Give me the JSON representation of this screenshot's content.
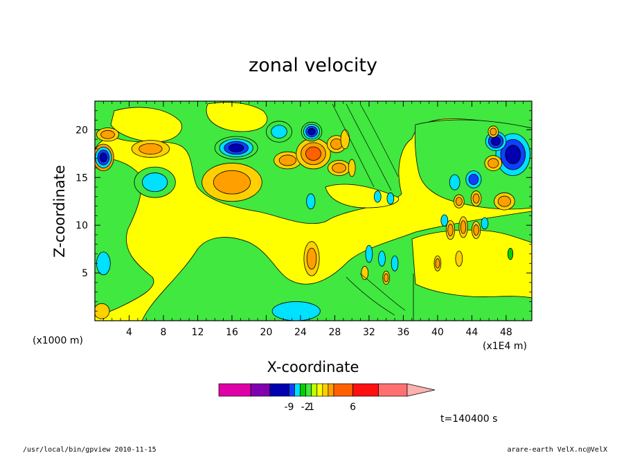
{
  "chart_data": {
    "type": "heatmap",
    "title": "zonal velocity",
    "xlabel": "X-coordinate",
    "ylabel": "Z-coordinate",
    "x_unit_left": "(x1000 m)",
    "x_unit_right": "(x1E4 m)",
    "xlim": [
      0,
      51
    ],
    "ylim": [
      0,
      23
    ],
    "xticks": [
      4,
      8,
      12,
      16,
      20,
      24,
      28,
      32,
      36,
      40,
      44,
      48
    ],
    "yticks": [
      5,
      10,
      15,
      20
    ],
    "colorbar": {
      "colors": [
        "#e000a8",
        "#8000b0",
        "#0000b0",
        "#1040ff",
        "#00e0ff",
        "#00d000",
        "#40e840",
        "#c0ff00",
        "#ffff00",
        "#ffd000",
        "#ffa000",
        "#ff6000",
        "#ff1010",
        "#ff7070"
      ],
      "tick_labels": [
        {
          "label": "-9",
          "index": 3
        },
        {
          "label": "-2",
          "index": 6
        },
        {
          "label": "1",
          "index": 7
        },
        {
          "label": "6",
          "index": 12
        }
      ],
      "extend": "max",
      "extend_color": "#ffb0b0"
    },
    "features": [
      {
        "cx": 1,
        "cy": 17.1,
        "rx": 1.2,
        "ry": 1.4,
        "levels": [
          "#ffa000",
          "#00e0ff",
          "#1040ff",
          "#0000b0"
        ]
      },
      {
        "cx": 1.5,
        "cy": 19.5,
        "rx": 1.3,
        "ry": 0.7,
        "levels": [
          "#ffd000",
          "#ffa000"
        ]
      },
      {
        "cx": 6.5,
        "cy": 18,
        "rx": 2.2,
        "ry": 0.9,
        "levels": [
          "#ffd000",
          "#ffa000"
        ]
      },
      {
        "cx": 7,
        "cy": 14.5,
        "rx": 2.4,
        "ry": 1.6,
        "levels": [
          "#40e840",
          "#00e0ff"
        ]
      },
      {
        "cx": 16,
        "cy": 14.5,
        "rx": 3.5,
        "ry": 2.0,
        "levels": [
          "#ffd000",
          "#ffa000"
        ]
      },
      {
        "cx": 16.5,
        "cy": 18.1,
        "rx": 2.5,
        "ry": 1.2,
        "levels": [
          "#40e840",
          "#00e0ff",
          "#1040ff",
          "#0000b0"
        ]
      },
      {
        "cx": 21.5,
        "cy": 19.8,
        "rx": 1.5,
        "ry": 1.1,
        "levels": [
          "#40e840",
          "#00e0ff"
        ]
      },
      {
        "cx": 22.5,
        "cy": 16.8,
        "rx": 1.6,
        "ry": 0.9,
        "levels": [
          "#ffd000",
          "#ffa000"
        ]
      },
      {
        "cx": 25.5,
        "cy": 17.5,
        "rx": 2.0,
        "ry": 1.6,
        "levels": [
          "#ffd000",
          "#ffa000",
          "#ff6000"
        ]
      },
      {
        "cx": 25.3,
        "cy": 19.8,
        "rx": 1.2,
        "ry": 1.0,
        "levels": [
          "#40e840",
          "#00e0ff",
          "#1040ff",
          "#0000b0"
        ]
      },
      {
        "cx": 28.2,
        "cy": 18.5,
        "rx": 1.1,
        "ry": 0.9,
        "levels": [
          "#ffd000",
          "#ffa000"
        ]
      },
      {
        "cx": 28.5,
        "cy": 16.0,
        "rx": 1.3,
        "ry": 0.8,
        "levels": [
          "#ffd000",
          "#ffa000"
        ]
      },
      {
        "cx": 25.2,
        "cy": 12.5,
        "rx": 0.5,
        "ry": 0.8,
        "levels": [
          "#00e0ff"
        ]
      },
      {
        "cx": 25.3,
        "cy": 6.5,
        "rx": 0.9,
        "ry": 1.8,
        "levels": [
          "#ffd000",
          "#ffa000"
        ]
      },
      {
        "cx": 23.5,
        "cy": 1.0,
        "rx": 2.8,
        "ry": 1.0,
        "levels": [
          "#00e0ff"
        ]
      },
      {
        "cx": 1.0,
        "cy": 6.0,
        "rx": 0.8,
        "ry": 1.2,
        "levels": [
          "#00e0ff"
        ]
      },
      {
        "cx": 0.8,
        "cy": 1.0,
        "rx": 0.9,
        "ry": 0.8,
        "levels": [
          "#ffd000"
        ]
      },
      {
        "cx": 48.8,
        "cy": 17.4,
        "rx": 2.0,
        "ry": 2.2,
        "levels": [
          "#00e0ff",
          "#1040ff",
          "#0000b0"
        ]
      },
      {
        "cx": 46.8,
        "cy": 18.8,
        "rx": 1.2,
        "ry": 1.0,
        "levels": [
          "#00e0ff",
          "#1040ff",
          "#0000b0"
        ]
      },
      {
        "cx": 46.5,
        "cy": 16.5,
        "rx": 1.0,
        "ry": 0.8,
        "levels": [
          "#ffd000",
          "#ffa000"
        ]
      },
      {
        "cx": 44.2,
        "cy": 14.8,
        "rx": 0.9,
        "ry": 0.9,
        "levels": [
          "#00e0ff",
          "#1040ff"
        ]
      },
      {
        "cx": 44.5,
        "cy": 12.8,
        "rx": 0.6,
        "ry": 0.8,
        "levels": [
          "#ffd000",
          "#ffa000"
        ]
      },
      {
        "cx": 42.5,
        "cy": 12.5,
        "rx": 0.6,
        "ry": 0.7,
        "levels": [
          "#ffd000",
          "#ffa000"
        ]
      },
      {
        "cx": 47.8,
        "cy": 12.5,
        "rx": 1.2,
        "ry": 0.9,
        "levels": [
          "#ffd000",
          "#ffa000"
        ]
      },
      {
        "cx": 46.5,
        "cy": 19.8,
        "rx": 0.6,
        "ry": 0.6,
        "levels": [
          "#ffd000",
          "#ffa000"
        ]
      },
      {
        "cx": 42.0,
        "cy": 14.5,
        "rx": 0.6,
        "ry": 0.8,
        "levels": [
          "#00e0ff"
        ]
      },
      {
        "cx": 33.0,
        "cy": 13.0,
        "rx": 0.4,
        "ry": 0.6,
        "levels": [
          "#00e0ff"
        ]
      },
      {
        "cx": 34.5,
        "cy": 12.8,
        "rx": 0.4,
        "ry": 0.6,
        "levels": [
          "#00e0ff"
        ]
      },
      {
        "cx": 41.5,
        "cy": 9.5,
        "rx": 0.5,
        "ry": 1.0,
        "levels": [
          "#ffd000",
          "#ffa000"
        ]
      },
      {
        "cx": 43.0,
        "cy": 9.8,
        "rx": 0.5,
        "ry": 1.1,
        "levels": [
          "#ffd000",
          "#ffa000"
        ]
      },
      {
        "cx": 44.5,
        "cy": 9.5,
        "rx": 0.5,
        "ry": 0.9,
        "levels": [
          "#ffd000",
          "#ffa000"
        ]
      },
      {
        "cx": 40.8,
        "cy": 10.5,
        "rx": 0.4,
        "ry": 0.6,
        "levels": [
          "#00e0ff"
        ]
      },
      {
        "cx": 45.5,
        "cy": 10.2,
        "rx": 0.4,
        "ry": 0.6,
        "levels": [
          "#00e0ff"
        ]
      },
      {
        "cx": 32.0,
        "cy": 7.0,
        "rx": 0.4,
        "ry": 0.9,
        "levels": [
          "#00e0ff"
        ]
      },
      {
        "cx": 33.5,
        "cy": 6.5,
        "rx": 0.4,
        "ry": 0.8,
        "levels": [
          "#00e0ff"
        ]
      },
      {
        "cx": 35.0,
        "cy": 6.0,
        "rx": 0.4,
        "ry": 0.8,
        "levels": [
          "#00e0ff"
        ]
      },
      {
        "cx": 34.0,
        "cy": 4.5,
        "rx": 0.4,
        "ry": 0.7,
        "levels": [
          "#ffd000",
          "#ffa000"
        ]
      },
      {
        "cx": 31.5,
        "cy": 5.0,
        "rx": 0.4,
        "ry": 0.7,
        "levels": [
          "#ffd000"
        ]
      },
      {
        "cx": 40.0,
        "cy": 6.0,
        "rx": 0.4,
        "ry": 0.8,
        "levels": [
          "#ffd000",
          "#ffa000"
        ]
      },
      {
        "cx": 42.5,
        "cy": 6.5,
        "rx": 0.4,
        "ry": 0.8,
        "levels": [
          "#ffd000"
        ]
      },
      {
        "cx": 48.5,
        "cy": 7.0,
        "rx": 0.3,
        "ry": 0.6,
        "levels": [
          "#00d000"
        ]
      },
      {
        "cx": 29.2,
        "cy": 19.0,
        "rx": 0.5,
        "ry": 1.0,
        "levels": [
          "#ffd000"
        ]
      },
      {
        "cx": 30.0,
        "cy": 16.0,
        "rx": 0.4,
        "ry": 0.9,
        "levels": [
          "#ffd000"
        ]
      }
    ]
  },
  "annotations": {
    "time": "t=140400 s",
    "footer_left": "/usr/local/bin/gpview  2010-11-15",
    "footer_right": "arare-earth_VelX.nc@VelX"
  }
}
